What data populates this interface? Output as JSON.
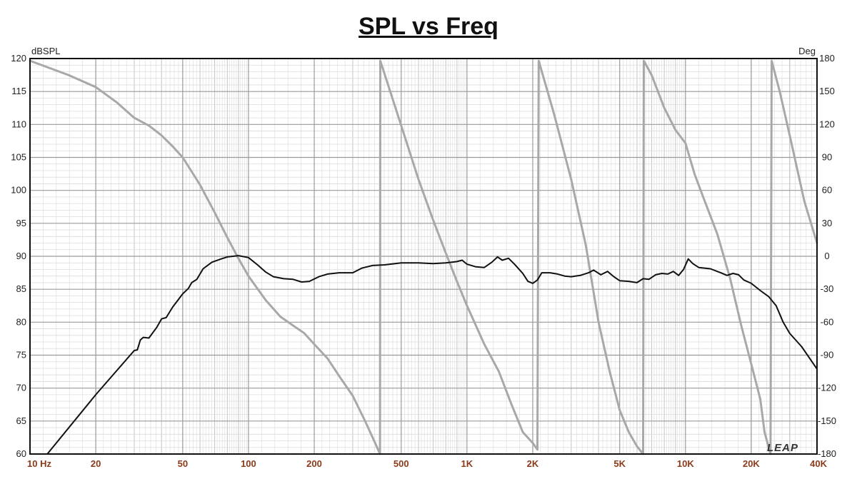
{
  "chart_data": {
    "type": "line",
    "title": "SPL vs Freq",
    "left_axis_unit": "dBSPL",
    "right_axis_unit": "Deg",
    "x_scale": "log",
    "xlim": [
      10,
      40000
    ],
    "ylim_left": [
      60,
      120
    ],
    "ylim_right": [
      -180,
      180
    ],
    "grid": true,
    "y_ticks_left": [
      "120",
      "115",
      "110",
      "105",
      "100",
      "95",
      "90",
      "85",
      "80",
      "75",
      "70",
      "65",
      "60"
    ],
    "y_ticks_right": [
      "180",
      "150",
      "120",
      "90",
      "60",
      "30",
      "0",
      "-30",
      "-60",
      "-90",
      "-120",
      "-150",
      "-180"
    ],
    "x_ticks": [
      {
        "f": 10,
        "label": "10  Hz"
      },
      {
        "f": 20,
        "label": "20"
      },
      {
        "f": 50,
        "label": "50"
      },
      {
        "f": 100,
        "label": "100"
      },
      {
        "f": 200,
        "label": "200"
      },
      {
        "f": 500,
        "label": "500"
      },
      {
        "f": 1000,
        "label": "1K"
      },
      {
        "f": 2000,
        "label": "2K"
      },
      {
        "f": 5000,
        "label": "5K"
      },
      {
        "f": 10000,
        "label": "10K"
      },
      {
        "f": 20000,
        "label": "20K"
      },
      {
        "f": 40000,
        "label": "40K"
      }
    ],
    "series": [
      {
        "axis": "left",
        "color": "#111111",
        "points": [
          [
            12,
            60
          ],
          [
            20,
            69
          ],
          [
            30,
            75.7
          ],
          [
            31,
            75.8
          ],
          [
            32,
            77.3
          ],
          [
            33,
            77.7
          ],
          [
            35,
            77.6
          ],
          [
            38,
            79.2
          ],
          [
            40,
            80.5
          ],
          [
            42,
            80.7
          ],
          [
            45,
            82.3
          ],
          [
            50,
            84.3
          ],
          [
            53,
            85.1
          ],
          [
            55,
            86.0
          ],
          [
            58,
            86.5
          ],
          [
            62,
            88.1
          ],
          [
            68,
            89.1
          ],
          [
            75,
            89.6
          ],
          [
            80,
            89.9
          ],
          [
            90,
            90.1
          ],
          [
            100,
            89.8
          ],
          [
            110,
            88.7
          ],
          [
            120,
            87.6
          ],
          [
            130,
            86.9
          ],
          [
            145,
            86.6
          ],
          [
            160,
            86.5
          ],
          [
            175,
            86.1
          ],
          [
            190,
            86.2
          ],
          [
            210,
            86.9
          ],
          [
            230,
            87.3
          ],
          [
            260,
            87.5
          ],
          [
            300,
            87.5
          ],
          [
            330,
            88.2
          ],
          [
            370,
            88.6
          ],
          [
            420,
            88.7
          ],
          [
            500,
            89.0
          ],
          [
            600,
            89.0
          ],
          [
            700,
            88.9
          ],
          [
            800,
            89.0
          ],
          [
            900,
            89.2
          ],
          [
            950,
            89.4
          ],
          [
            1000,
            88.8
          ],
          [
            1100,
            88.4
          ],
          [
            1200,
            88.3
          ],
          [
            1300,
            89.1
          ],
          [
            1380,
            89.9
          ],
          [
            1450,
            89.4
          ],
          [
            1550,
            89.7
          ],
          [
            1650,
            88.8
          ],
          [
            1800,
            87.4
          ],
          [
            1900,
            86.2
          ],
          [
            2000,
            85.9
          ],
          [
            2100,
            86.4
          ],
          [
            2200,
            87.5
          ],
          [
            2400,
            87.5
          ],
          [
            2600,
            87.3
          ],
          [
            2800,
            87.0
          ],
          [
            3000,
            86.9
          ],
          [
            3300,
            87.1
          ],
          [
            3600,
            87.5
          ],
          [
            3800,
            87.9
          ],
          [
            4100,
            87.2
          ],
          [
            4400,
            87.7
          ],
          [
            4700,
            86.9
          ],
          [
            5000,
            86.3
          ],
          [
            5500,
            86.2
          ],
          [
            6000,
            86.0
          ],
          [
            6400,
            86.6
          ],
          [
            6800,
            86.5
          ],
          [
            7300,
            87.2
          ],
          [
            7800,
            87.4
          ],
          [
            8300,
            87.3
          ],
          [
            8800,
            87.7
          ],
          [
            9300,
            87.1
          ],
          [
            9800,
            88.0
          ],
          [
            10300,
            89.6
          ],
          [
            10800,
            88.9
          ],
          [
            11500,
            88.3
          ],
          [
            13000,
            88.1
          ],
          [
            14500,
            87.5
          ],
          [
            15500,
            87.1
          ],
          [
            16500,
            87.4
          ],
          [
            17500,
            87.2
          ],
          [
            18500,
            86.4
          ],
          [
            20000,
            85.9
          ],
          [
            22000,
            84.8
          ],
          [
            24000,
            83.9
          ],
          [
            26000,
            82.5
          ],
          [
            28000,
            80.0
          ],
          [
            30000,
            78.3
          ],
          [
            34000,
            76.3
          ],
          [
            40000,
            72.9
          ]
        ]
      },
      {
        "axis": "right",
        "color": "#a8a8a8",
        "points": [
          [
            10,
            178
          ],
          [
            15,
            165
          ],
          [
            20,
            154
          ],
          [
            25,
            140
          ],
          [
            30,
            126
          ],
          [
            35,
            119
          ],
          [
            40,
            110
          ],
          [
            45,
            100
          ],
          [
            50,
            90
          ],
          [
            55,
            77
          ],
          [
            60,
            65
          ],
          [
            65,
            52
          ],
          [
            70,
            40
          ],
          [
            80,
            17
          ],
          [
            90,
            -2
          ],
          [
            100,
            -18
          ],
          [
            120,
            -40
          ],
          [
            140,
            -55
          ],
          [
            160,
            -63
          ],
          [
            180,
            -70
          ],
          [
            200,
            -80
          ],
          [
            230,
            -93
          ],
          [
            260,
            -109
          ],
          [
            300,
            -127
          ],
          [
            340,
            -149
          ],
          [
            380,
            -170
          ],
          [
            400,
            -180
          ],
          [
            401,
            178
          ],
          [
            500,
            119
          ],
          [
            600,
            70
          ],
          [
            700,
            33
          ],
          [
            800,
            3
          ],
          [
            900,
            -23
          ],
          [
            1000,
            -45
          ],
          [
            1200,
            -80
          ],
          [
            1400,
            -105
          ],
          [
            1600,
            -135
          ],
          [
            1800,
            -160
          ],
          [
            2000,
            -170
          ],
          [
            2100,
            -176
          ],
          [
            2130,
            178
          ],
          [
            2500,
            130
          ],
          [
            3000,
            70
          ],
          [
            3500,
            10
          ],
          [
            4000,
            -60
          ],
          [
            4500,
            -105
          ],
          [
            5000,
            -140
          ],
          [
            5500,
            -160
          ],
          [
            6000,
            -173
          ],
          [
            6400,
            -180
          ],
          [
            6450,
            178
          ],
          [
            7000,
            165
          ],
          [
            8000,
            135
          ],
          [
            9000,
            115
          ],
          [
            10000,
            103
          ],
          [
            11000,
            75
          ],
          [
            12000,
            55
          ],
          [
            14000,
            20
          ],
          [
            16000,
            -20
          ],
          [
            18000,
            -63
          ],
          [
            20000,
            -98
          ],
          [
            22000,
            -130
          ],
          [
            23000,
            -160
          ],
          [
            24500,
            -180
          ],
          [
            24800,
            178
          ],
          [
            27000,
            150
          ],
          [
            30000,
            110
          ],
          [
            35000,
            50
          ],
          [
            40000,
            12
          ]
        ]
      }
    ]
  },
  "watermark": "LEAP"
}
